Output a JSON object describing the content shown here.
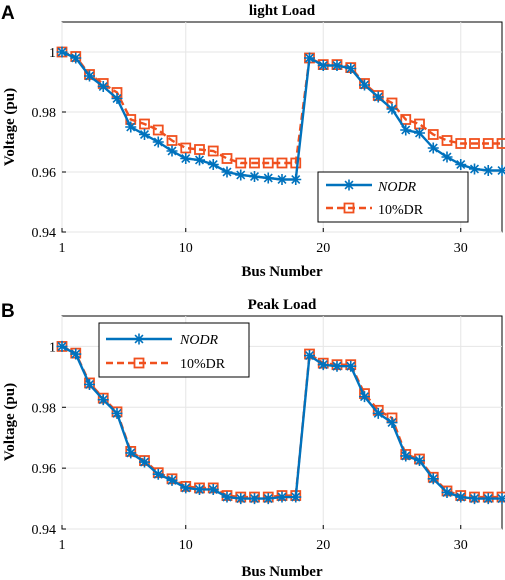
{
  "colors": {
    "nodr": "#0072BD",
    "dr": "#F0501E",
    "axis": "#000000",
    "grid": "#E6E6E6"
  },
  "chart_data": [
    {
      "panel_label": "A",
      "type": "line",
      "title": "light Load",
      "xlabel": "Bus Number",
      "ylabel": "Voltage (pu)",
      "xlim": [
        1,
        33
      ],
      "ylim": [
        0.94,
        1.01
      ],
      "xticks": [
        1,
        10,
        20,
        30
      ],
      "yticks": [
        0.94,
        0.96,
        0.98,
        1
      ],
      "ytick_labels": [
        "0.94",
        "0.96",
        "0.98",
        "1"
      ],
      "legend_position": "bottom-right",
      "x": [
        1,
        2,
        3,
        4,
        5,
        6,
        7,
        8,
        9,
        10,
        11,
        12,
        13,
        14,
        15,
        16,
        17,
        18,
        19,
        20,
        21,
        22,
        23,
        24,
        25,
        26,
        27,
        28,
        29,
        30,
        31,
        32,
        33
      ],
      "series": [
        {
          "name": "NODR",
          "marker": "asterisk",
          "line": "solid",
          "values": [
            1.0,
            0.998,
            0.992,
            0.9885,
            0.9845,
            0.975,
            0.9725,
            0.97,
            0.967,
            0.9645,
            0.964,
            0.9625,
            0.96,
            0.959,
            0.9585,
            0.958,
            0.9575,
            0.9575,
            0.998,
            0.9955,
            0.9955,
            0.9945,
            0.989,
            0.985,
            0.981,
            0.974,
            0.973,
            0.968,
            0.965,
            0.9625,
            0.961,
            0.9605,
            0.9605
          ]
        },
        {
          "name": "10%DR",
          "marker": "square",
          "line": "dashed",
          "values": [
            1.0,
            0.9985,
            0.9925,
            0.9895,
            0.9865,
            0.9775,
            0.976,
            0.974,
            0.9705,
            0.968,
            0.9675,
            0.967,
            0.9645,
            0.963,
            0.963,
            0.963,
            0.963,
            0.963,
            0.998,
            0.9958,
            0.9958,
            0.9948,
            0.9895,
            0.9855,
            0.983,
            0.9775,
            0.976,
            0.9725,
            0.9705,
            0.9695,
            0.9695,
            0.9695,
            0.9695
          ]
        }
      ]
    },
    {
      "panel_label": "B",
      "type": "line",
      "title": "Peak Load",
      "xlabel": "Bus Number",
      "ylabel": "Voltage (pu)",
      "xlim": [
        1,
        33
      ],
      "ylim": [
        0.94,
        1.01
      ],
      "xticks": [
        1,
        10,
        20,
        30
      ],
      "yticks": [
        0.94,
        0.96,
        0.98,
        1
      ],
      "ytick_labels": [
        "0.94",
        "0.96",
        "0.98",
        "1"
      ],
      "legend_position": "top-left",
      "x": [
        1,
        2,
        3,
        4,
        5,
        6,
        7,
        8,
        9,
        10,
        11,
        12,
        13,
        14,
        15,
        16,
        17,
        18,
        19,
        20,
        21,
        22,
        23,
        24,
        25,
        26,
        27,
        28,
        29,
        30,
        31,
        32,
        33
      ],
      "series": [
        {
          "name": "NODR",
          "marker": "asterisk",
          "line": "solid",
          "values": [
            1.0,
            0.9975,
            0.9875,
            0.9825,
            0.978,
            0.965,
            0.962,
            0.958,
            0.956,
            0.9535,
            0.953,
            0.953,
            0.9505,
            0.95,
            0.95,
            0.95,
            0.9505,
            0.9505,
            0.997,
            0.994,
            0.9935,
            0.9935,
            0.9835,
            0.978,
            0.975,
            0.964,
            0.9625,
            0.9565,
            0.952,
            0.9505,
            0.95,
            0.95,
            0.95
          ]
        },
        {
          "name": "10%DR",
          "marker": "square",
          "line": "dashed",
          "values": [
            1.0,
            0.9978,
            0.988,
            0.983,
            0.9785,
            0.9655,
            0.9625,
            0.9585,
            0.9565,
            0.954,
            0.9535,
            0.9535,
            0.951,
            0.9505,
            0.9505,
            0.9505,
            0.951,
            0.951,
            0.9975,
            0.9945,
            0.994,
            0.994,
            0.9845,
            0.979,
            0.9765,
            0.9645,
            0.963,
            0.957,
            0.9525,
            0.951,
            0.9505,
            0.9505,
            0.9505
          ]
        }
      ]
    }
  ]
}
